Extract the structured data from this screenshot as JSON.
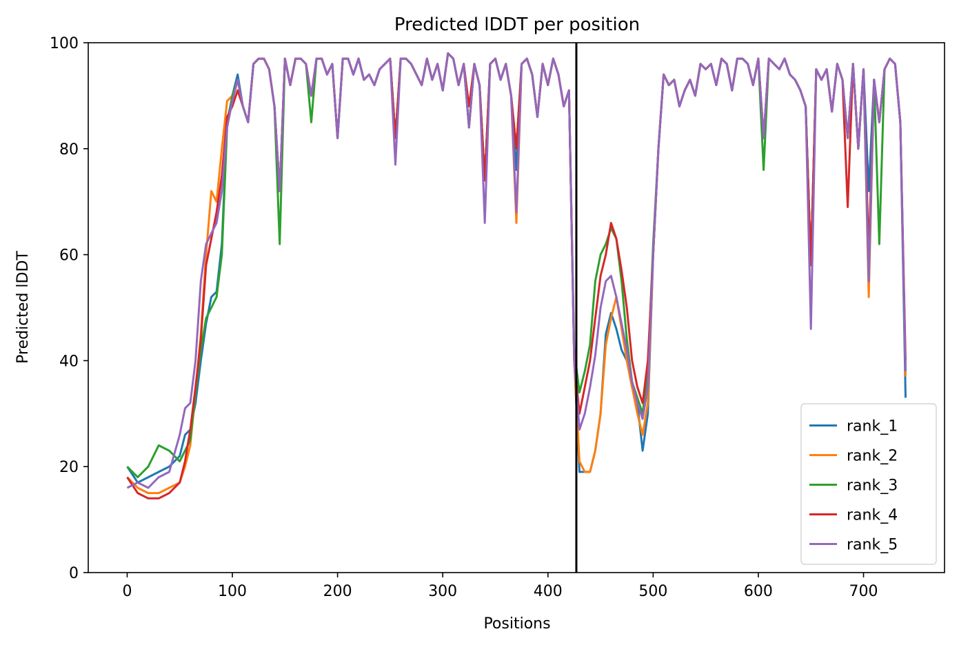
{
  "chart_data": {
    "type": "line",
    "title": "Predicted lDDT per position",
    "xlabel": "Positions",
    "ylabel": "Predicted lDDT",
    "xlim": [
      -37,
      777
    ],
    "ylim": [
      0,
      100
    ],
    "xticks": [
      0,
      100,
      200,
      300,
      400,
      500,
      600,
      700
    ],
    "yticks": [
      0,
      20,
      40,
      60,
      80,
      100
    ],
    "grid": false,
    "legend_position": "lower right",
    "chain_break_x": 427,
    "x": [
      0,
      10,
      20,
      30,
      40,
      50,
      55,
      60,
      65,
      70,
      75,
      80,
      85,
      90,
      95,
      100,
      105,
      110,
      115,
      120,
      125,
      130,
      135,
      140,
      145,
      150,
      155,
      160,
      165,
      170,
      175,
      180,
      185,
      190,
      195,
      200,
      205,
      210,
      215,
      220,
      225,
      230,
      235,
      240,
      245,
      250,
      255,
      260,
      265,
      270,
      275,
      280,
      285,
      290,
      295,
      300,
      305,
      310,
      315,
      320,
      325,
      330,
      335,
      340,
      345,
      350,
      355,
      360,
      365,
      370,
      375,
      380,
      385,
      390,
      395,
      400,
      405,
      410,
      415,
      420,
      425,
      430,
      435,
      440,
      445,
      450,
      455,
      460,
      465,
      470,
      475,
      480,
      485,
      490,
      495,
      500,
      505,
      510,
      515,
      520,
      525,
      530,
      535,
      540,
      545,
      550,
      555,
      560,
      565,
      570,
      575,
      580,
      585,
      590,
      595,
      600,
      605,
      610,
      615,
      620,
      625,
      630,
      635,
      640,
      645,
      650,
      655,
      660,
      665,
      670,
      675,
      680,
      685,
      690,
      695,
      700,
      705,
      710,
      715,
      720,
      725,
      730,
      735,
      740
    ],
    "series": [
      {
        "name": "rank_1",
        "color": "#1f77b4",
        "values": [
          20,
          17,
          18,
          19,
          20,
          22,
          26,
          27,
          32,
          40,
          47,
          52,
          53,
          62,
          85,
          90,
          94,
          88,
          85,
          96,
          97,
          97,
          95,
          88,
          72,
          97,
          92,
          97,
          97,
          96,
          90,
          97,
          97,
          94,
          96,
          82,
          97,
          97,
          94,
          97,
          93,
          94,
          92,
          95,
          96,
          97,
          82,
          97,
          97,
          96,
          94,
          92,
          97,
          93,
          96,
          91,
          98,
          97,
          92,
          96,
          84,
          96,
          92,
          74,
          96,
          97,
          93,
          96,
          90,
          76,
          96,
          97,
          94,
          86,
          96,
          92,
          97,
          94,
          88,
          91,
          40,
          19,
          19,
          19,
          23,
          30,
          45,
          49,
          46,
          42,
          40,
          35,
          32,
          23,
          30,
          60,
          80,
          94,
          92,
          93,
          88,
          91,
          93,
          90,
          96,
          95,
          96,
          92,
          97,
          96,
          91,
          97,
          97,
          96,
          92,
          97,
          82,
          97,
          96,
          95,
          97,
          94,
          93,
          91,
          88,
          58,
          95,
          93,
          95,
          87,
          96,
          93,
          82,
          96,
          80,
          95,
          72,
          93,
          85,
          95,
          97,
          96,
          85,
          33
        ]
      },
      {
        "name": "rank_2",
        "color": "#ff7f0e",
        "values": [
          18,
          16,
          15,
          15,
          16,
          17,
          20,
          24,
          34,
          45,
          60,
          72,
          70,
          80,
          89,
          90,
          93,
          88,
          85,
          96,
          97,
          97,
          95,
          88,
          72,
          97,
          92,
          97,
          97,
          96,
          90,
          97,
          97,
          94,
          96,
          82,
          97,
          97,
          94,
          97,
          93,
          94,
          92,
          95,
          96,
          97,
          82,
          97,
          97,
          96,
          94,
          92,
          97,
          93,
          96,
          91,
          98,
          97,
          92,
          96,
          84,
          96,
          92,
          74,
          96,
          97,
          93,
          96,
          90,
          66,
          96,
          97,
          94,
          86,
          96,
          92,
          97,
          94,
          88,
          91,
          40,
          21,
          19,
          19,
          23,
          30,
          43,
          48,
          52,
          46,
          40,
          35,
          30,
          26,
          32,
          60,
          80,
          94,
          92,
          93,
          88,
          91,
          93,
          90,
          96,
          95,
          96,
          92,
          97,
          96,
          91,
          97,
          97,
          96,
          92,
          97,
          82,
          97,
          96,
          95,
          97,
          94,
          93,
          91,
          88,
          58,
          95,
          93,
          95,
          87,
          96,
          93,
          82,
          96,
          80,
          95,
          52,
          93,
          85,
          95,
          97,
          96,
          85,
          37
        ]
      },
      {
        "name": "rank_3",
        "color": "#2ca02c",
        "values": [
          20,
          18,
          20,
          24,
          23,
          21,
          23,
          25,
          34,
          42,
          48,
          50,
          52,
          60,
          84,
          90,
          93,
          88,
          85,
          96,
          97,
          97,
          95,
          88,
          62,
          97,
          92,
          97,
          97,
          96,
          85,
          97,
          97,
          94,
          96,
          82,
          97,
          97,
          94,
          97,
          93,
          94,
          92,
          95,
          96,
          97,
          82,
          97,
          97,
          96,
          94,
          92,
          97,
          93,
          96,
          91,
          98,
          97,
          92,
          96,
          84,
          96,
          92,
          74,
          96,
          97,
          93,
          96,
          90,
          80,
          96,
          97,
          94,
          86,
          96,
          92,
          97,
          94,
          88,
          91,
          42,
          34,
          38,
          43,
          55,
          60,
          62,
          65,
          63,
          55,
          44,
          36,
          33,
          30,
          38,
          62,
          80,
          94,
          92,
          93,
          88,
          91,
          93,
          90,
          96,
          95,
          96,
          92,
          97,
          96,
          91,
          97,
          97,
          96,
          92,
          97,
          76,
          97,
          96,
          95,
          97,
          94,
          93,
          91,
          88,
          58,
          95,
          93,
          95,
          87,
          96,
          93,
          82,
          96,
          80,
          95,
          55,
          93,
          62,
          95,
          97,
          96,
          85,
          38
        ]
      },
      {
        "name": "rank_4",
        "color": "#d62728",
        "values": [
          18,
          15,
          14,
          14,
          15,
          17,
          21,
          27,
          35,
          44,
          58,
          63,
          68,
          75,
          86,
          88,
          91,
          88,
          85,
          96,
          97,
          97,
          95,
          88,
          72,
          97,
          92,
          97,
          97,
          96,
          90,
          97,
          97,
          94,
          96,
          82,
          97,
          97,
          94,
          97,
          93,
          94,
          92,
          95,
          96,
          97,
          82,
          97,
          97,
          96,
          94,
          92,
          97,
          93,
          96,
          91,
          98,
          97,
          92,
          96,
          88,
          96,
          92,
          74,
          96,
          97,
          93,
          96,
          90,
          80,
          96,
          97,
          94,
          86,
          96,
          92,
          97,
          94,
          88,
          91,
          40,
          30,
          35,
          40,
          48,
          56,
          60,
          66,
          63,
          57,
          50,
          40,
          35,
          32,
          40,
          60,
          80,
          94,
          92,
          93,
          88,
          91,
          93,
          90,
          96,
          95,
          96,
          92,
          97,
          96,
          91,
          97,
          97,
          96,
          92,
          97,
          82,
          97,
          96,
          95,
          97,
          94,
          93,
          91,
          88,
          58,
          95,
          93,
          95,
          87,
          96,
          93,
          69,
          96,
          80,
          95,
          60,
          93,
          85,
          95,
          97,
          96,
          85,
          40
        ]
      },
      {
        "name": "rank_5",
        "color": "#9467bd",
        "values": [
          16,
          17,
          16,
          18,
          19,
          26,
          31,
          32,
          40,
          55,
          62,
          64,
          66,
          72,
          84,
          89,
          93,
          88,
          85,
          96,
          97,
          97,
          95,
          88,
          72,
          97,
          92,
          97,
          97,
          96,
          90,
          97,
          97,
          94,
          96,
          82,
          97,
          97,
          94,
          97,
          93,
          94,
          92,
          95,
          96,
          97,
          77,
          97,
          97,
          96,
          94,
          92,
          97,
          93,
          96,
          91,
          98,
          97,
          92,
          96,
          84,
          96,
          92,
          66,
          96,
          97,
          93,
          96,
          90,
          68,
          96,
          97,
          94,
          86,
          96,
          92,
          97,
          94,
          88,
          91,
          40,
          27,
          30,
          35,
          41,
          50,
          55,
          56,
          52,
          47,
          42,
          36,
          32,
          29,
          35,
          60,
          80,
          94,
          92,
          93,
          88,
          91,
          93,
          90,
          96,
          95,
          96,
          92,
          97,
          96,
          91,
          97,
          97,
          96,
          92,
          97,
          82,
          97,
          96,
          95,
          97,
          94,
          93,
          91,
          88,
          46,
          95,
          93,
          95,
          87,
          96,
          93,
          82,
          96,
          80,
          95,
          55,
          93,
          85,
          95,
          97,
          96,
          85,
          38
        ]
      }
    ]
  }
}
